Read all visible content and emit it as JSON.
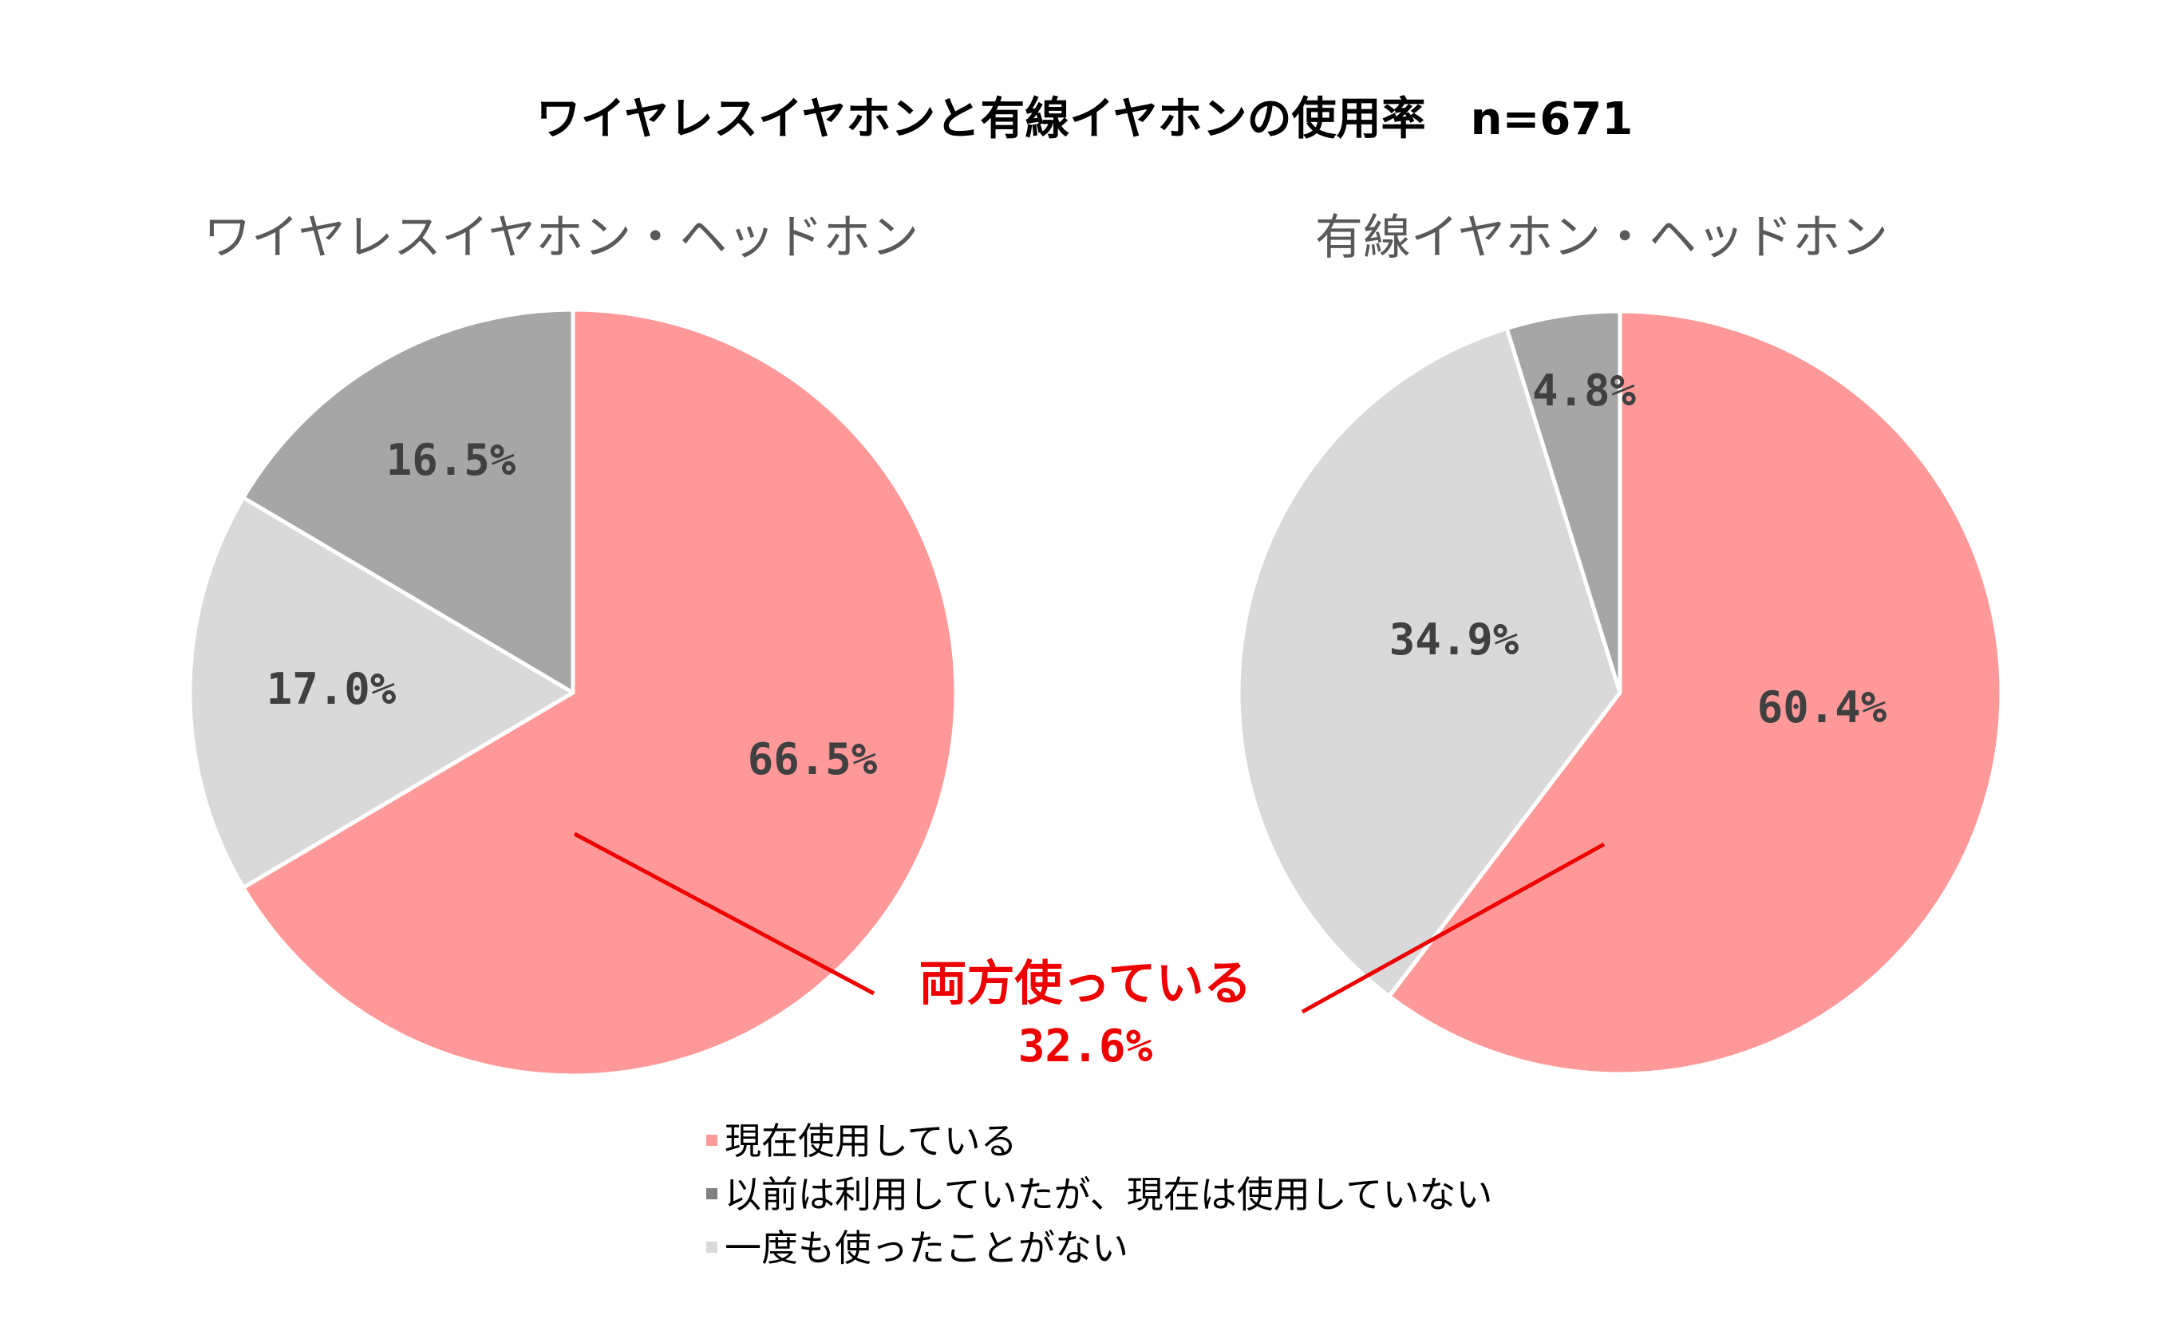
{
  "title": "ワイヤレスイヤホンと有線イヤホンの使用率　n=671",
  "chart_data": [
    {
      "type": "pie",
      "title": "ワイヤレスイヤホン・ヘッドホン",
      "slices": [
        {
          "category": "現在使用している",
          "value": 66.5,
          "label": "66.5%",
          "color": "#ff9999"
        },
        {
          "category": "一度も使ったことがない",
          "value": 17.0,
          "label": "17.0%",
          "color": "#d9d9d9"
        },
        {
          "category": "以前は利用していたが、現在は使用していない",
          "value": 16.5,
          "label": "16.5%",
          "color": "#a6a6a6"
        }
      ]
    },
    {
      "type": "pie",
      "title": "有線イヤホン・ヘッドホン",
      "slices": [
        {
          "category": "現在使用している",
          "value": 60.4,
          "label": "60.4%",
          "color": "#ff9999"
        },
        {
          "category": "一度も使ったことがない",
          "value": 34.9,
          "label": "34.9%",
          "color": "#d9d9d9"
        },
        {
          "category": "以前は利用していたが、現在は使用していない",
          "value": 4.8,
          "label": "4.8%",
          "color": "#a6a6a6"
        }
      ]
    }
  ],
  "annotation": {
    "text": "両方使っている",
    "value": "32.6%",
    "color": "#ee0000"
  },
  "legend": [
    {
      "label": "現在使用している",
      "color": "#ff9999"
    },
    {
      "label": "以前は利用していたが、現在は使用していない",
      "color": "#808080"
    },
    {
      "label": "一度も使ったことがない",
      "color": "#d9d9d9"
    }
  ]
}
